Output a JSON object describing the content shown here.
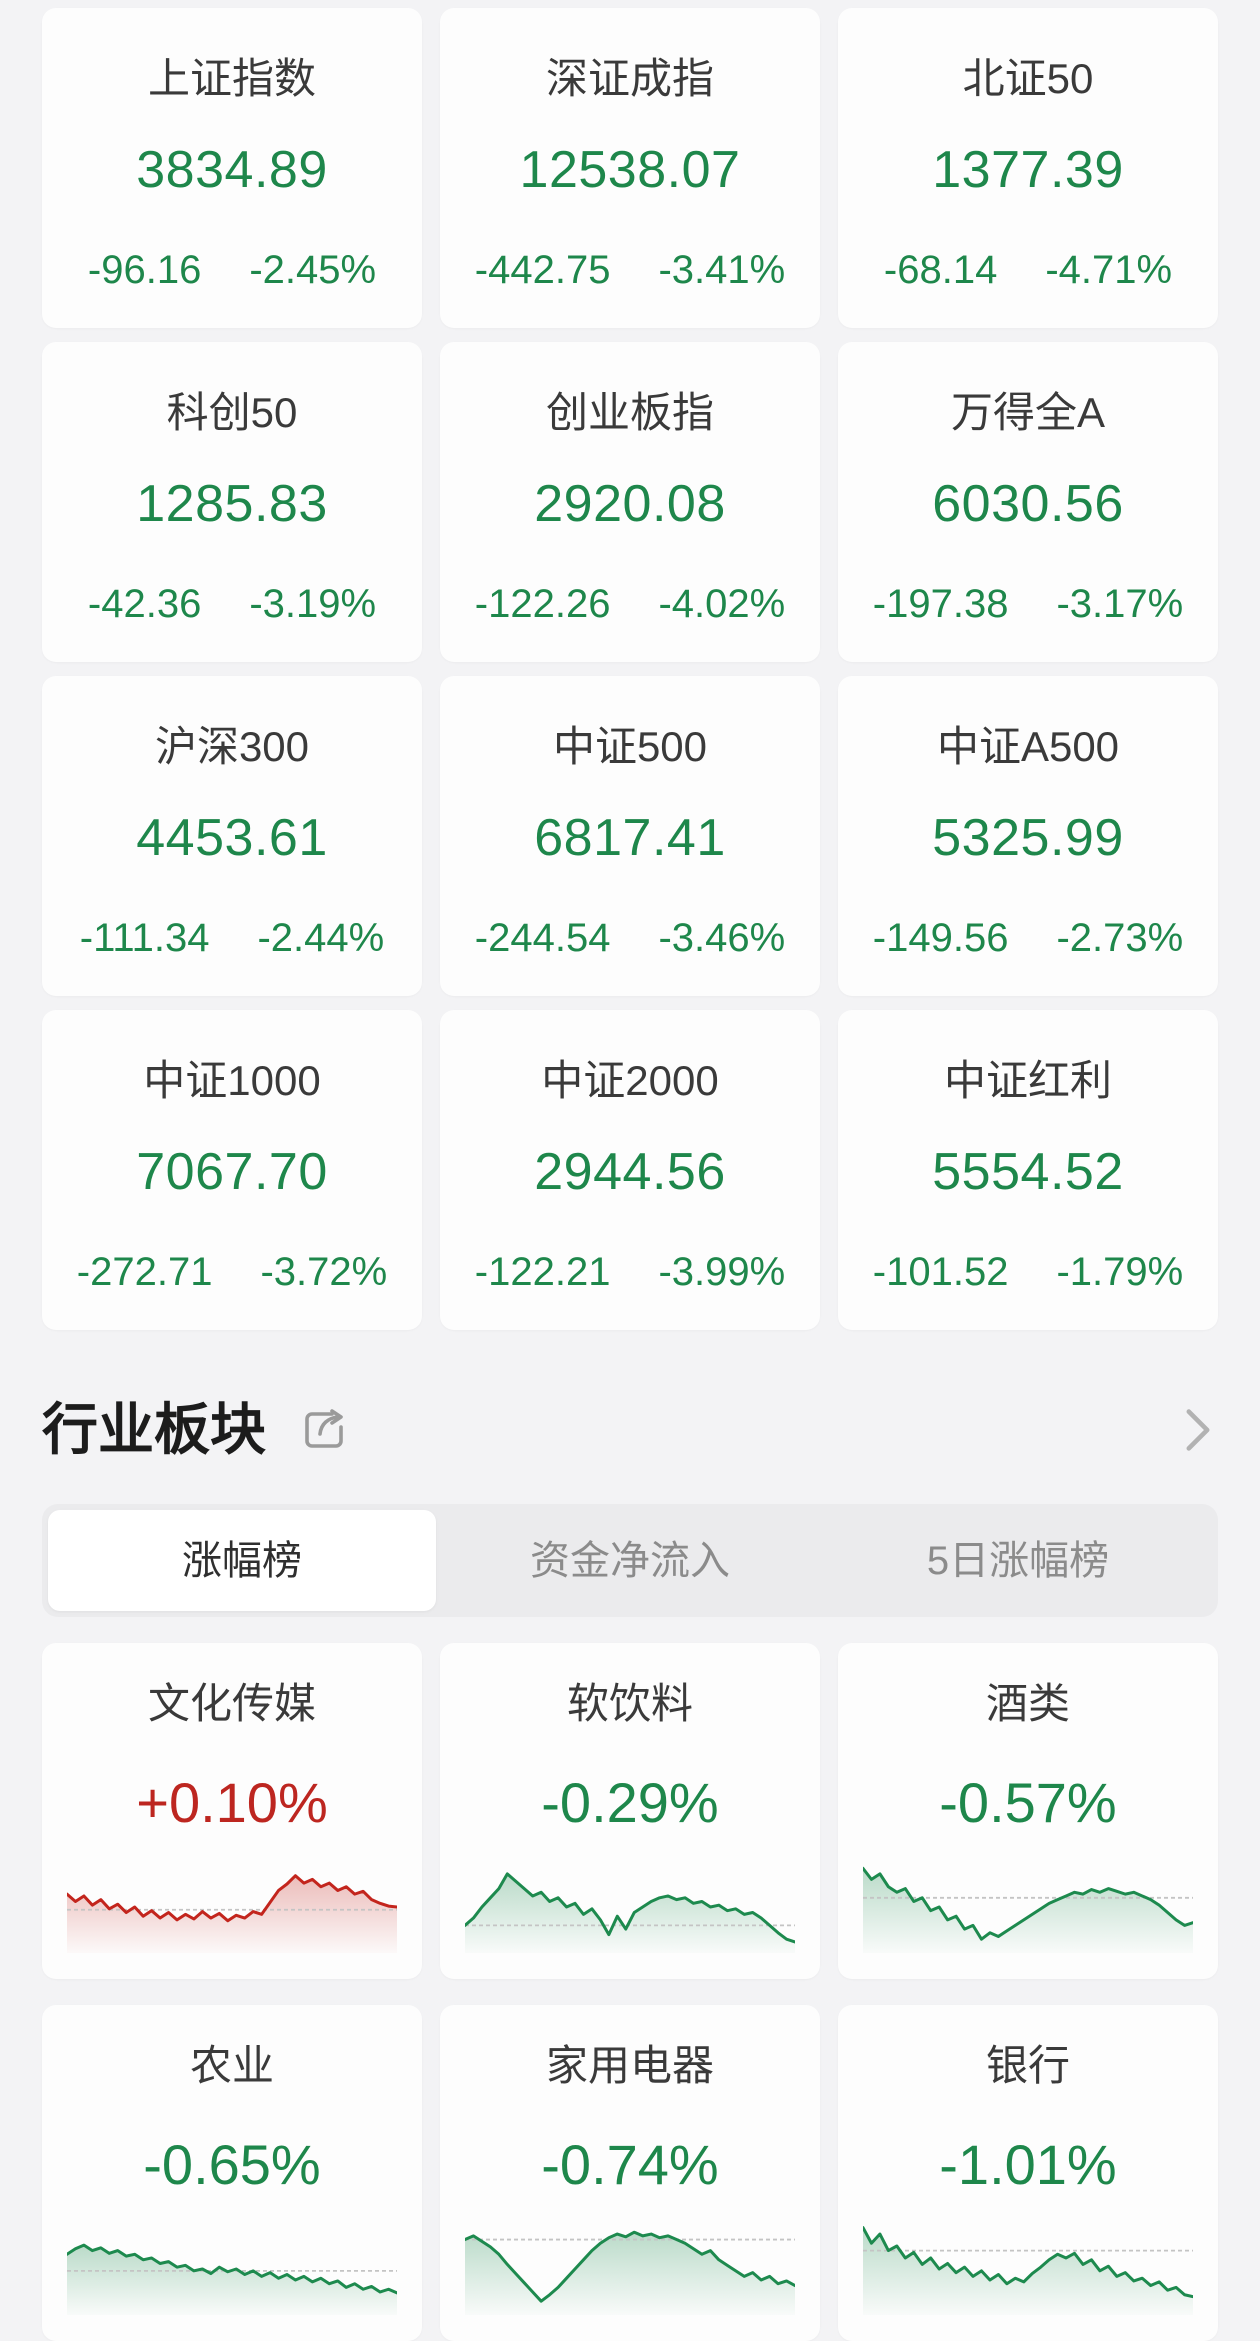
{
  "theme": {
    "page_bg": "#f3f3f5",
    "card_bg": "#fdfdfd",
    "up_color": "#bd2620",
    "down_color": "#1e874b",
    "up_line": "#c3251d",
    "down_line": "#1d8a4e",
    "baseline_color": "#c4c4c4",
    "muted_text": "#8b8b8b"
  },
  "indices": [
    {
      "name": "上证指数",
      "value": "3834.89",
      "change": "-96.16",
      "pct": "-2.45%",
      "dir": "down"
    },
    {
      "name": "深证成指",
      "value": "12538.07",
      "change": "-442.75",
      "pct": "-3.41%",
      "dir": "down"
    },
    {
      "name": "北证50",
      "value": "1377.39",
      "change": "-68.14",
      "pct": "-4.71%",
      "dir": "down"
    },
    {
      "name": "科创50",
      "value": "1285.83",
      "change": "-42.36",
      "pct": "-3.19%",
      "dir": "down"
    },
    {
      "name": "创业板指",
      "value": "2920.08",
      "change": "-122.26",
      "pct": "-4.02%",
      "dir": "down"
    },
    {
      "name": "万得全A",
      "value": "6030.56",
      "change": "-197.38",
      "pct": "-3.17%",
      "dir": "down"
    },
    {
      "name": "沪深300",
      "value": "4453.61",
      "change": "-111.34",
      "pct": "-2.44%",
      "dir": "down"
    },
    {
      "name": "中证500",
      "value": "6817.41",
      "change": "-244.54",
      "pct": "-3.46%",
      "dir": "down"
    },
    {
      "name": "中证A500",
      "value": "5325.99",
      "change": "-149.56",
      "pct": "-2.73%",
      "dir": "down"
    },
    {
      "name": "中证1000",
      "value": "7067.70",
      "change": "-272.71",
      "pct": "-3.72%",
      "dir": "down"
    },
    {
      "name": "中证2000",
      "value": "2944.56",
      "change": "-122.21",
      "pct": "-3.99%",
      "dir": "down"
    },
    {
      "name": "中证红利",
      "value": "5554.52",
      "change": "-101.52",
      "pct": "-1.79%",
      "dir": "down"
    }
  ],
  "section": {
    "title": "行业板块"
  },
  "tabs": [
    {
      "label": "涨幅榜",
      "selected": true
    },
    {
      "label": "资金净流入",
      "selected": false
    },
    {
      "label": "5日涨幅榜",
      "selected": false
    }
  ],
  "sectors": [
    {
      "name": "文化传媒",
      "pct": "+0.10%",
      "dir": "up",
      "spark": {
        "baseline": 53,
        "points": [
          36,
          44,
          38,
          48,
          42,
          52,
          47,
          56,
          50,
          60,
          54,
          62,
          56,
          64,
          58,
          63,
          55,
          62,
          57,
          65,
          59,
          62,
          55,
          58,
          45,
          32,
          25,
          16,
          24,
          20,
          28,
          24,
          32,
          28,
          36,
          33,
          42,
          46,
          49,
          50
        ]
      }
    },
    {
      "name": "软饮料",
      "pct": "-0.29%",
      "dir": "down",
      "spark": {
        "baseline": 70,
        "points": [
          70,
          62,
          50,
          40,
          30,
          14,
          22,
          30,
          38,
          34,
          44,
          40,
          50,
          46,
          58,
          52,
          64,
          80,
          60,
          74,
          56,
          50,
          44,
          40,
          38,
          42,
          40,
          46,
          44,
          50,
          48,
          54,
          52,
          58,
          56,
          62,
          70,
          78,
          85,
          88
        ]
      }
    },
    {
      "name": "酒类",
      "pct": "-0.57%",
      "dir": "down",
      "spark": {
        "baseline": 40,
        "points": [
          8,
          20,
          14,
          28,
          34,
          30,
          44,
          40,
          54,
          50,
          64,
          60,
          74,
          70,
          85,
          78,
          82,
          76,
          70,
          64,
          58,
          52,
          46,
          42,
          38,
          34,
          36,
          31,
          34,
          30,
          33,
          36,
          34,
          38,
          42,
          48,
          56,
          64,
          70,
          67
        ]
      }
    },
    {
      "name": "农业",
      "pct": "-0.65%",
      "dir": "down",
      "spark": {
        "baseline": 52,
        "points": [
          34,
          28,
          24,
          30,
          27,
          33,
          30,
          36,
          34,
          40,
          38,
          44,
          42,
          48,
          46,
          52,
          50,
          55,
          48,
          53,
          50,
          56,
          52,
          58,
          54,
          60,
          56,
          62,
          58,
          64,
          60,
          66,
          63,
          70,
          66,
          72,
          69,
          75,
          72,
          76
        ]
      }
    },
    {
      "name": "家用电器",
      "pct": "-0.74%",
      "dir": "down",
      "spark": {
        "baseline": 18,
        "points": [
          18,
          14,
          20,
          26,
          34,
          45,
          55,
          65,
          75,
          85,
          78,
          70,
          60,
          50,
          40,
          30,
          22,
          16,
          12,
          15,
          10,
          14,
          12,
          16,
          14,
          18,
          22,
          28,
          34,
          30,
          40,
          46,
          52,
          58,
          54,
          62,
          58,
          66,
          63,
          68
        ]
      }
    },
    {
      "name": "银行",
      "pct": "-1.01%",
      "dir": "down",
      "spark": {
        "baseline": 30,
        "points": [
          5,
          22,
          12,
          30,
          25,
          38,
          32,
          45,
          38,
          50,
          44,
          54,
          48,
          58,
          52,
          62,
          56,
          66,
          60,
          64,
          55,
          48,
          40,
          34,
          38,
          33,
          45,
          40,
          52,
          47,
          58,
          54,
          63,
          60,
          68,
          64,
          73,
          70,
          78,
          80
        ]
      }
    }
  ]
}
